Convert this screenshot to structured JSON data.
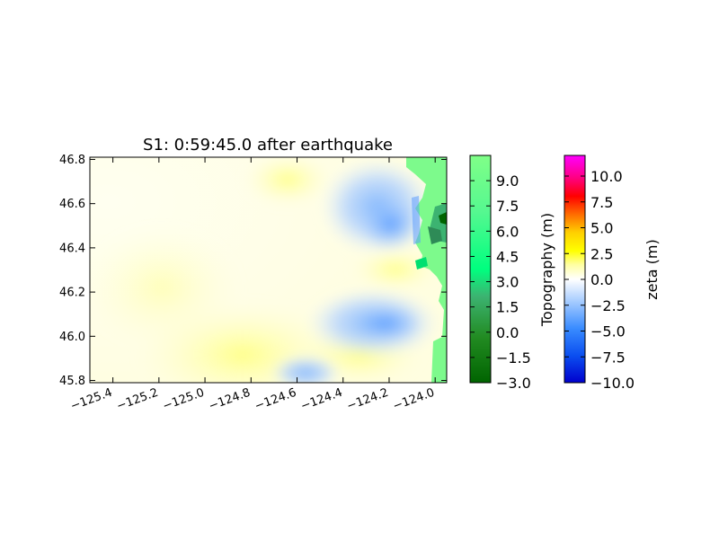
{
  "chart_data": {
    "type": "heatmap",
    "title": "S1: 0:59:45.0 after earthquake",
    "xlabel": "",
    "ylabel": "",
    "xlim": [
      -125.5,
      -123.95
    ],
    "ylim": [
      45.79,
      46.81
    ],
    "x_ticks": [
      -125.4,
      -125.2,
      -125.0,
      -124.8,
      -124.6,
      -124.4,
      -124.2,
      -124.0
    ],
    "x_tick_labels": [
      "−125.4",
      "−125.2",
      "−125.0",
      "−124.8",
      "−124.6",
      "−124.4",
      "−124.2",
      "−124.0"
    ],
    "y_ticks": [
      46.8,
      46.6,
      46.4,
      46.2,
      46.0,
      45.8
    ],
    "y_tick_labels": [
      "46.8",
      "46.6",
      "46.4",
      "46.2",
      "46.0",
      "45.8"
    ],
    "grid": false,
    "colorbars": [
      {
        "label": "Topography (m)",
        "range": [
          -3.0,
          10.5
        ],
        "ticks": [
          9.0,
          7.5,
          6.0,
          4.5,
          3.0,
          1.5,
          0.0,
          -1.5,
          -3.0
        ],
        "tick_labels": [
          "9.0",
          "7.5",
          "6.0",
          "4.5",
          "3.0",
          "1.5",
          "0.0",
          "−1.5",
          "−3.0"
        ],
        "colors": [
          "#006400",
          "#2e8b57",
          "#3cb371",
          "#00ff7f",
          "#5cf58f",
          "#7fff8e",
          "#80ff80"
        ]
      },
      {
        "label": "zeta (m)",
        "range": [
          -10.0,
          12.0
        ],
        "ticks": [
          10.0,
          7.5,
          5.0,
          2.5,
          0.0,
          -2.5,
          -5.0,
          -7.5,
          -10.0
        ],
        "tick_labels": [
          "10.0",
          "7.5",
          "5.0",
          "2.5",
          "0.0",
          "−2.5",
          "−5.0",
          "−7.5",
          "−10.0"
        ],
        "colors": [
          "#0000cd",
          "#0b5ff5",
          "#3a8cff",
          "#a9cfff",
          "#ffffff",
          "#ffff70",
          "#ffff00",
          "#ffc000",
          "#ff6000",
          "#ff0000",
          "#ff00ff"
        ]
      }
    ]
  }
}
